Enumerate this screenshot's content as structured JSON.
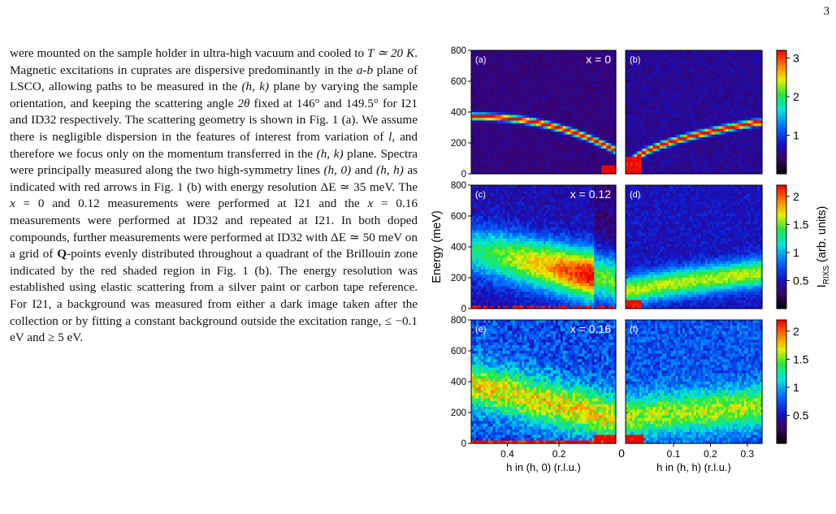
{
  "page": {
    "number": "3"
  },
  "text": {
    "paragraph": [
      "were mounted on the sample holder in ultra-high vacuum and cooled to ",
      {
        "m": "T ≃ 20 K"
      },
      ". Magnetic excitations in cuprates are dispersive predominantly in the ",
      {
        "m": "a-b"
      },
      " plane of LSCO, allowing paths to be measured in the ",
      {
        "m": "(h, k)"
      },
      " plane by varying the sample orientation, and keeping the scattering angle ",
      {
        "m": "2θ"
      },
      " fixed at 146° and 149.5° for I21 and ID32 respectively. The scattering geometry is shown in Fig. 1 (a). We assume there is negligible dispersion in the features of interest from variation of ",
      {
        "m": "l"
      },
      ", and therefore we focus only on the momentum transferred in the ",
      {
        "m": "(h, k)"
      },
      " plane. Spectra were principally measured along the two high-symmetry lines ",
      {
        "m": "(h, 0)"
      },
      " and ",
      {
        "m": "(h, h)"
      },
      " as indicated with red arrows in Fig. 1 (b) with energy resolution ΔE ≃ 35 meV. The ",
      {
        "m": "x"
      },
      " = 0 and 0.12 measurements were performed at I21 and the ",
      {
        "m": "x"
      },
      " = 0.16 measurements were performed at ID32 and repeated at I21. In both doped compounds, further measurements were performed at ID32 with ΔE ≃ 50 meV on a grid of ",
      {
        "b": "Q"
      },
      "-points evenly distributed throughout a quadrant of the Brillouin zone indicated by the red shaded region in Fig. 1 (b). The energy resolution was established using elastic scattering from a silver paint or carbon tape reference. For I21, a background was measured from either a dark image taken after the collection or by fitting a constant background outside the excitation range, ≤ −0.1 eV and ≥ 5 eV."
    ]
  },
  "figure": {
    "ylabel": "Energy (meV)",
    "colorbar_label": "I",
    "colorbar_label_sub": "RIXS",
    "colorbar_label_suffix": " (arb. units)",
    "x_left_label": "h in (h, 0) (r.l.u.)",
    "x_right_label": "h in (h, h) (r.l.u.)",
    "x_left_ticks": [
      0.4,
      0.2
    ],
    "x_right_ticks": [
      0.1,
      0.2,
      0.3
    ],
    "x_zero_label": "0",
    "panels": [
      {
        "left": "(a)",
        "right": "(b)",
        "doping": "x = 0",
        "colorbar_ticks": [
          1,
          2,
          3
        ],
        "cmax": 3.2
      },
      {
        "left": "(c)",
        "right": "(d)",
        "doping": "x = 0.12",
        "colorbar_ticks": [
          0.5,
          1,
          1.5,
          2
        ],
        "cmax": 2.2
      },
      {
        "left": "(e)",
        "right": "(f)",
        "doping": "x = 0.16",
        "colorbar_ticks": [
          0.5,
          1,
          1.5,
          2
        ],
        "cmax": 2.2
      }
    ]
  },
  "chart_data": [
    {
      "type": "heatmap",
      "title": "(a) x = 0",
      "xlabel": "h in (h, 0) (r.l.u.)",
      "ylabel": "Energy (meV)",
      "ylim": [
        0,
        800
      ],
      "colorbar": [
        0,
        3.2
      ]
    },
    {
      "type": "heatmap",
      "title": "(b)",
      "xlabel": "h in (h, h) (r.l.u.)",
      "ylabel": "Energy (meV)",
      "ylim": [
        0,
        800
      ],
      "colorbar": [
        0,
        3.2
      ]
    },
    {
      "type": "heatmap",
      "title": "(c) x = 0.12",
      "xlabel": "h in (h, 0) (r.l.u.)",
      "ylabel": "Energy (meV)",
      "ylim": [
        0,
        800
      ],
      "colorbar": [
        0,
        2.2
      ]
    },
    {
      "type": "heatmap",
      "title": "(d)",
      "xlabel": "h in (h, h) (r.l.u.)",
      "ylabel": "Energy (meV)",
      "ylim": [
        0,
        800
      ],
      "colorbar": [
        0,
        2.2
      ]
    },
    {
      "type": "heatmap",
      "title": "(e) x = 0.16",
      "xlabel": "h in (h, 0) (r.l.u.)",
      "ylabel": "Energy (meV)",
      "ylim": [
        0,
        800
      ],
      "colorbar": [
        0,
        2.2
      ]
    },
    {
      "type": "heatmap",
      "title": "(f)",
      "xlabel": "h in (h, h) (r.l.u.)",
      "ylabel": "Energy (meV)",
      "ylim": [
        0,
        800
      ],
      "colorbar": [
        0,
        2.2
      ]
    }
  ]
}
